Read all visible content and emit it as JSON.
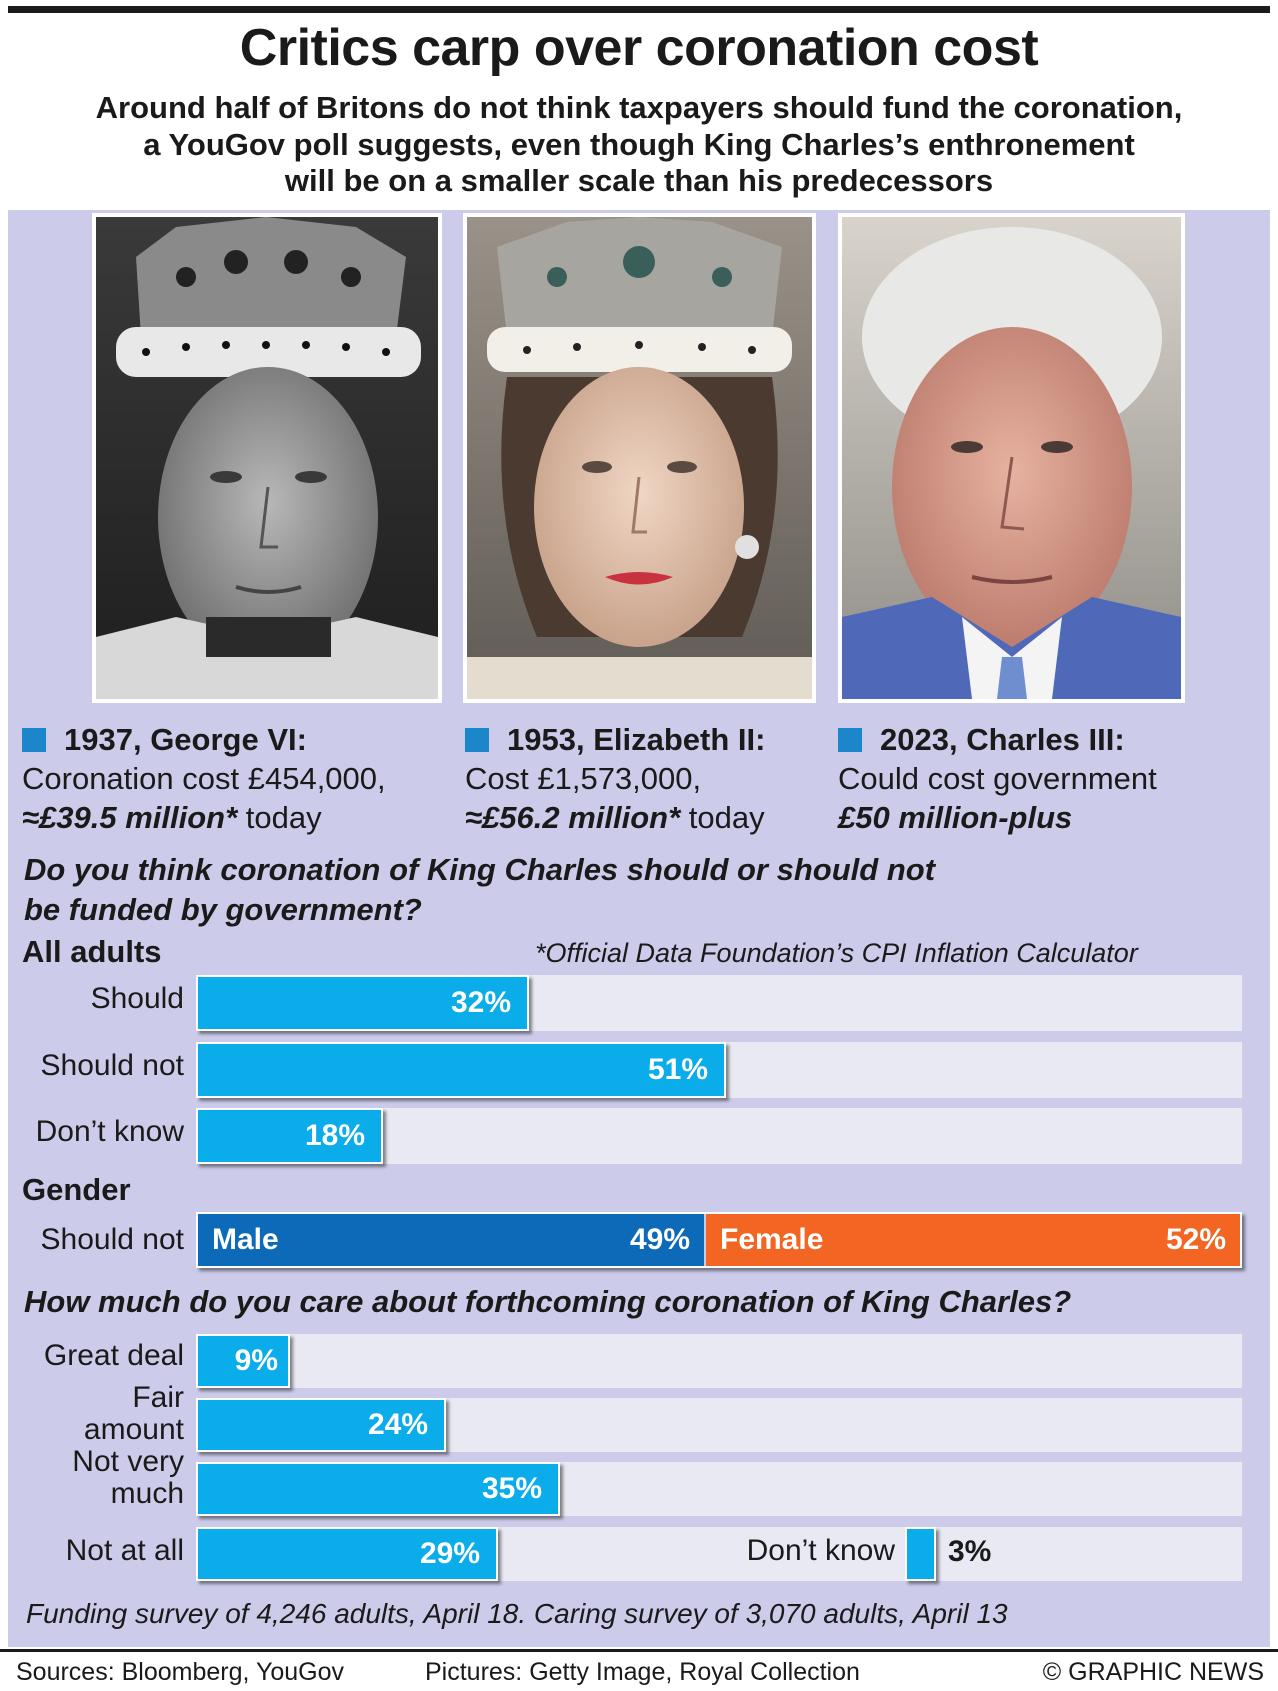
{
  "title": "Critics carp over coronation cost",
  "subtitle": "Around half of Britons do not think taxpayers should fund the coronation,\na YouGov poll suggests, even though King Charles’s enthronement\nwill be on a smaller scale than his predecessors",
  "monarchs": [
    {
      "heading": "1937, George VI:",
      "line1": "Coronation cost £454,000,",
      "emph": "≈£39.5 million*",
      "rest": " today"
    },
    {
      "heading": "1953, Elizabeth II:",
      "line1": "Cost £1,573,000,",
      "emph": "≈£56.2 million*",
      "rest": " today"
    },
    {
      "heading": "2023, Charles III:",
      "line1": "Could cost government",
      "emph": "£50 million-plus",
      "rest": ""
    }
  ],
  "question1": "Do you think coronation of King Charles should or should not\nbe funded by government?",
  "section_all": "All adults",
  "inflation_note": "*Official Data Foundation’s CPI Inflation Calculator",
  "section_gender": "Gender",
  "question2": "How much do you care about forthcoming coronation of King Charles?",
  "chart_data": [
    {
      "type": "bar",
      "title": "All adults",
      "categories": [
        "Should",
        "Should not",
        "Don’t know"
      ],
      "values": [
        32,
        51,
        18
      ],
      "labels": [
        "32%",
        "51%",
        "18%"
      ],
      "xlim": [
        0,
        100
      ]
    },
    {
      "type": "bar",
      "title": "Gender",
      "categories": [
        "Should not"
      ],
      "series": [
        {
          "name": "Male",
          "values": [
            49
          ],
          "label": "49%",
          "color": "#0d6ab8"
        },
        {
          "name": "Female",
          "values": [
            52
          ],
          "label": "52%",
          "color": "#f26522"
        }
      ]
    },
    {
      "type": "bar",
      "categories": [
        "Great deal",
        "Fair\namount",
        "Not very\nmuch",
        "Not at all",
        "Don’t know"
      ],
      "values": [
        9,
        24,
        35,
        29,
        3
      ],
      "labels": [
        "9%",
        "24%",
        "35%",
        "29%",
        "3%"
      ],
      "xlim": [
        0,
        100
      ]
    }
  ],
  "footnote": "Funding survey of 4,246 adults, April 18. Caring survey of 3,070 adults, April 13",
  "footer": {
    "sources": "Sources: Bloomberg, YouGov",
    "pictures": "Pictures: Getty Image, Royal Collection",
    "credit": "© GRAPHIC NEWS"
  },
  "colors": {
    "bar": "#0aacea",
    "male": "#0d6ab8",
    "female": "#f26522",
    "panel": "#ccccea",
    "track": "#e9e9f3",
    "marker": "#1b86c9"
  }
}
